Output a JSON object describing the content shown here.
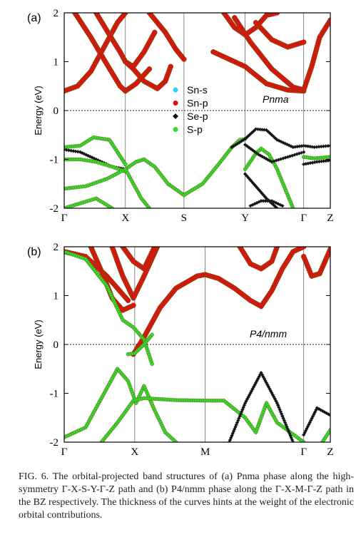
{
  "chart_data": [
    {
      "type": "line",
      "panel_label": "(a)",
      "phase_label": "Pnma",
      "ylabel": "Energy (eV)",
      "ylim": [
        -2,
        2
      ],
      "yticks": [
        -2,
        -1,
        0,
        1,
        2
      ],
      "ytick_labels": [
        "-2",
        "-1",
        "0",
        "1",
        "2"
      ],
      "kpoints": [
        "Γ",
        "X",
        "S",
        "Y",
        "Γ",
        "Z"
      ],
      "kpos": [
        0,
        0.23,
        0.45,
        0.68,
        0.9,
        1.0
      ],
      "xlim": [
        0,
        1
      ],
      "fermi_level": 0,
      "legend": {
        "placement": "center",
        "entries": [
          {
            "name": "Sn-s",
            "color": "#33ccff",
            "marker": "circle"
          },
          {
            "name": "Sn-p",
            "color": "#dd1111",
            "marker": "circle"
          },
          {
            "name": "Se-p",
            "color": "#111111",
            "marker": "diamond"
          },
          {
            "name": "S-p",
            "color": "#33dd33",
            "marker": "circle"
          }
        ]
      },
      "series": [
        {
          "orbital": "Sn-p",
          "x": [
            0,
            0.05,
            0.1,
            0.15,
            0.2,
            0.23
          ],
          "y": [
            0.4,
            0.5,
            0.8,
            1.3,
            1.8,
            2.0
          ]
        },
        {
          "orbital": "Sn-p",
          "x": [
            0.04,
            0.1,
            0.16,
            0.21,
            0.23,
            0.27,
            0.32
          ],
          "y": [
            2.0,
            1.5,
            0.95,
            0.5,
            0.4,
            0.55,
            0.85
          ]
        },
        {
          "orbital": "Sn-p",
          "x": [
            0.12,
            0.17,
            0.21,
            0.23,
            0.26,
            0.3,
            0.34
          ],
          "y": [
            2.0,
            1.55,
            1.2,
            1.0,
            0.9,
            1.2,
            1.6
          ]
        },
        {
          "orbital": "Sn-p",
          "x": [
            0.23,
            0.26,
            0.3,
            0.35,
            0.38,
            0.4
          ],
          "y": [
            1.0,
            0.85,
            0.6,
            0.45,
            0.6,
            0.9
          ]
        },
        {
          "orbital": "Sn-p",
          "x": [
            0.32,
            0.38,
            0.42,
            0.45
          ],
          "y": [
            2.0,
            1.6,
            1.25,
            1.05
          ]
        },
        {
          "orbital": "Sn-p",
          "x": [
            0.6,
            0.64,
            0.68,
            0.72,
            0.76,
            0.8
          ],
          "y": [
            2.0,
            1.7,
            1.55,
            1.7,
            1.95,
            2.0
          ]
        },
        {
          "orbital": "Sn-p",
          "x": [
            0.56,
            0.62,
            0.68,
            0.76,
            0.84,
            0.9
          ],
          "y": [
            1.2,
            1.05,
            0.9,
            0.55,
            0.42,
            0.4
          ]
        },
        {
          "orbital": "Sn-p",
          "x": [
            0.64,
            0.7,
            0.78,
            0.86,
            0.9,
            0.93,
            0.96,
            1.0
          ],
          "y": [
            1.9,
            1.4,
            0.85,
            0.48,
            0.42,
            0.9,
            1.5,
            1.85
          ]
        },
        {
          "orbital": "Sn-p",
          "x": [
            0.72,
            0.78,
            0.84,
            0.9
          ],
          "y": [
            1.8,
            1.45,
            1.3,
            1.4
          ]
        },
        {
          "orbital": "S-p",
          "x": [
            0,
            0.06,
            0.11,
            0.17,
            0.23
          ],
          "y": [
            -0.75,
            -0.72,
            -0.55,
            -0.6,
            -1.1
          ]
        },
        {
          "orbital": "Se-p",
          "x": [
            0,
            0.06,
            0.12,
            0.18,
            0.23
          ],
          "y": [
            -0.8,
            -0.85,
            -1.0,
            -1.15,
            -1.2
          ]
        },
        {
          "orbital": "S-p",
          "x": [
            0,
            0.06,
            0.12,
            0.18,
            0.23
          ],
          "y": [
            -1.0,
            -1.0,
            -1.05,
            -1.15,
            -1.25
          ]
        },
        {
          "orbital": "S-p",
          "x": [
            0,
            0.08,
            0.16,
            0.23
          ],
          "y": [
            -1.6,
            -1.55,
            -1.4,
            -1.2
          ]
        },
        {
          "orbital": "S-p",
          "x": [
            0,
            0.06,
            0.12,
            0.18
          ],
          "y": [
            -2.0,
            -1.9,
            -1.8,
            -2.0
          ]
        },
        {
          "orbital": "S-p",
          "x": [
            0.23,
            0.27,
            0.3,
            0.34,
            0.39,
            0.45
          ],
          "y": [
            -1.2,
            -1.05,
            -1.0,
            -1.15,
            -1.5,
            -1.73
          ]
        },
        {
          "orbital": "S-p",
          "x": [
            0.23,
            0.26,
            0.29,
            0.32
          ],
          "y": [
            -1.2,
            -1.5,
            -1.8,
            -2.0
          ]
        },
        {
          "orbital": "S-p",
          "x": [
            0.45,
            0.52,
            0.58,
            0.63,
            0.66,
            0.68
          ],
          "y": [
            -1.73,
            -1.5,
            -1.1,
            -0.75,
            -0.6,
            -0.58
          ]
        },
        {
          "orbital": "Se-p",
          "x": [
            0.63,
            0.68,
            0.72,
            0.76,
            0.8,
            0.86,
            0.9
          ],
          "y": [
            -0.75,
            -0.58,
            -0.38,
            -0.4,
            -0.6,
            -0.75,
            -0.72
          ]
        },
        {
          "orbital": "S-p",
          "x": [
            0.68,
            0.72,
            0.74,
            0.77,
            0.8,
            0.83,
            0.86
          ],
          "y": [
            -1.2,
            -0.88,
            -0.78,
            -0.9,
            -1.2,
            -1.6,
            -2.0
          ]
        },
        {
          "orbital": "Se-p",
          "x": [
            0.68,
            0.73,
            0.78,
            0.84,
            0.9
          ],
          "y": [
            -0.7,
            -0.9,
            -1.05,
            -0.95,
            -0.85
          ]
        },
        {
          "orbital": "Se-p",
          "x": [
            0.68,
            0.72,
            0.76,
            0.8
          ],
          "y": [
            -1.3,
            -1.55,
            -1.8,
            -2.0
          ]
        },
        {
          "orbital": "Se-p",
          "x": [
            0.7,
            0.74,
            0.78,
            0.82
          ],
          "y": [
            -1.95,
            -1.85,
            -1.85,
            -1.95
          ]
        },
        {
          "orbital": "Se-p",
          "x": [
            0.9,
            0.94,
            1.0
          ],
          "y": [
            -0.72,
            -0.75,
            -0.72
          ]
        },
        {
          "orbital": "S-p",
          "x": [
            0.9,
            0.94,
            1.0
          ],
          "y": [
            -0.95,
            -0.98,
            -0.95
          ]
        },
        {
          "orbital": "Se-p",
          "x": [
            0.9,
            0.95,
            1.0
          ],
          "y": [
            -1.1,
            -1.05,
            -1.02
          ]
        }
      ]
    },
    {
      "type": "line",
      "panel_label": "(b)",
      "phase_label": "P4/nmm",
      "ylabel": "Energy (eV)",
      "ylim": [
        -2,
        2
      ],
      "yticks": [
        -2,
        -1,
        0,
        1,
        2
      ],
      "ytick_labels": [
        "-2",
        "-1",
        "0",
        "1",
        "2"
      ],
      "kpoints": [
        "Γ",
        "X",
        "M",
        "Γ",
        "Z"
      ],
      "kpos": [
        0,
        0.265,
        0.53,
        0.9,
        1.0
      ],
      "xlim": [
        0,
        1
      ],
      "fermi_level": 0,
      "series": [
        {
          "orbital": "Sn-p",
          "x": [
            0,
            0.08,
            0.16,
            0.24
          ],
          "y": [
            1.9,
            1.8,
            1.4,
            0.9
          ]
        },
        {
          "orbital": "Sn-p",
          "x": [
            0.1,
            0.14,
            0.18,
            0.22,
            0.26
          ],
          "y": [
            2.0,
            1.5,
            0.95,
            0.7,
            0.8
          ]
        },
        {
          "orbital": "Sn-p",
          "x": [
            0.18,
            0.22,
            0.26,
            0.3,
            0.35
          ],
          "y": [
            2.0,
            1.4,
            0.95,
            1.4,
            2.0
          ]
        },
        {
          "orbital": "Sn-p",
          "x": [
            0.22,
            0.26,
            0.3,
            0.34
          ],
          "y": [
            2.0,
            1.7,
            1.55,
            2.0
          ]
        },
        {
          "orbital": "Sn-p",
          "x": [
            0.26,
            0.3,
            0.36,
            0.42,
            0.5,
            0.53,
            0.58,
            0.64,
            0.7,
            0.74
          ],
          "y": [
            -0.2,
            0.15,
            0.75,
            1.15,
            1.4,
            1.43,
            1.35,
            1.15,
            0.9,
            0.78
          ]
        },
        {
          "orbital": "Sn-p",
          "x": [
            0.66,
            0.7,
            0.74,
            0.78,
            0.8
          ],
          "y": [
            2.0,
            1.65,
            1.55,
            1.7,
            2.0
          ]
        },
        {
          "orbital": "Sn-p",
          "x": [
            0.74,
            0.78,
            0.82,
            0.86,
            0.9
          ],
          "y": [
            0.78,
            1.1,
            1.55,
            1.9,
            2.0
          ]
        },
        {
          "orbital": "Sn-p",
          "x": [
            0.9,
            0.93,
            0.96,
            1.0
          ],
          "y": [
            1.8,
            1.4,
            1.45,
            1.95
          ]
        },
        {
          "orbital": "S-p",
          "x": [
            0,
            0.08,
            0.16,
            0.22,
            0.26,
            0.3,
            0.33
          ],
          "y": [
            1.9,
            1.75,
            1.2,
            0.5,
            0.35,
            0.1,
            -0.4
          ]
        },
        {
          "orbital": "S-p",
          "x": [
            0.24,
            0.265,
            0.3,
            0.33
          ],
          "y": [
            -0.2,
            -0.18,
            0.0,
            0.2
          ]
        },
        {
          "orbital": "S-p",
          "x": [
            0,
            0.08,
            0.14,
            0.2,
            0.24,
            0.27,
            0.3,
            0.34,
            0.38,
            0.42
          ],
          "y": [
            -1.9,
            -1.7,
            -1.1,
            -0.5,
            -0.75,
            -1.2,
            -0.85,
            -1.35,
            -1.8,
            -2.0
          ]
        },
        {
          "orbital": "S-p",
          "x": [
            0.14,
            0.2,
            0.26,
            0.3,
            0.36,
            0.42,
            0.53,
            0.6,
            0.68,
            0.72,
            0.76,
            0.8,
            0.9
          ],
          "y": [
            -2.0,
            -1.6,
            -1.15,
            -1.1,
            -1.12,
            -1.14,
            -1.15,
            -1.15,
            -1.5,
            -1.8,
            -1.2,
            -1.6,
            -2.0
          ]
        },
        {
          "orbital": "Se-p",
          "x": [
            0.62,
            0.68,
            0.74,
            0.8,
            0.86
          ],
          "y": [
            -2.0,
            -1.2,
            -0.58,
            -1.2,
            -2.0
          ]
        },
        {
          "orbital": "Se-p",
          "x": [
            0.9,
            0.95,
            1.0
          ],
          "y": [
            -1.85,
            -1.3,
            -1.45
          ]
        },
        {
          "orbital": "S-p",
          "x": [
            0.97,
            1.0
          ],
          "y": [
            -2.0,
            -1.75
          ]
        }
      ]
    }
  ],
  "caption": {
    "prefix": "FIG. 6.",
    "text": "The orbital-projected band structures of (a) Pnma phase along the high-symmetry Γ-X-S-Y-Γ-Z path and (b) P4/nmm phase along the Γ-X-M-Γ-Z path in the BZ respectively. The thickness of the curves hints at the weight of the electronic orbital contributions."
  },
  "colors": {
    "Sn-s": "#33ccff",
    "Sn-p": "#dd1111",
    "Se-p": "#111111",
    "S-p": "#33dd33",
    "outline": "#6a5a00"
  }
}
